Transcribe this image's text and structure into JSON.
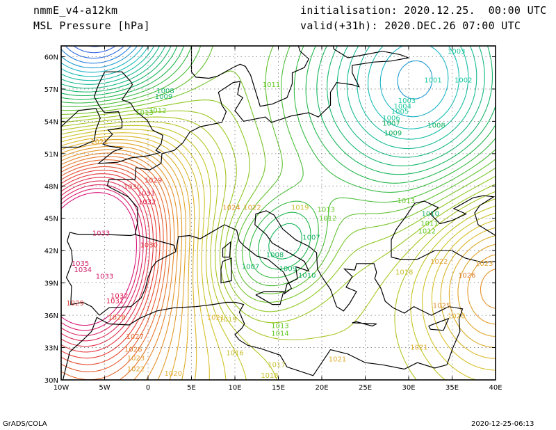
{
  "header": {
    "model": "nmmE_v4-a12km",
    "field": "MSL Pressure [hPa]",
    "init": "initialisation: 2020.12.25.  00:00 UTC",
    "valid": "valid(+31h): 2020.DEC.26 07:00 UTC"
  },
  "footer": {
    "left": "GrADS/COLA",
    "right": "2020-12-25-06:13"
  },
  "axes": {
    "lon_labels": [
      "10W",
      "5W",
      "0",
      "5E",
      "10E",
      "15E",
      "20E",
      "25E",
      "30E",
      "35E",
      "40E"
    ],
    "lat_labels": [
      "60N",
      "57N",
      "54N",
      "51N",
      "48N",
      "45N",
      "42N",
      "39N",
      "36N",
      "33N",
      "30N"
    ]
  },
  "isobars": [
    {
      "label": "1001",
      "color": "#1ec8a0",
      "lon": 32.8,
      "lat": 57.6
    },
    {
      "label": "1002",
      "color": "#1ec8a0",
      "lon": 36.3,
      "lat": 57.6
    },
    {
      "label": "1003",
      "color": "#1ec8a0",
      "lon": 29.8,
      "lat": 55.7
    },
    {
      "label": "1004",
      "color": "#1ec8a0",
      "lon": 29.3,
      "lat": 55.2
    },
    {
      "label": "1005",
      "color": "#1ec8a0",
      "lon": 29.0,
      "lat": 54.7
    },
    {
      "label": "1006",
      "color": "#1ec8a0",
      "lon": 28.0,
      "lat": 54.1
    },
    {
      "label": "1003",
      "color": "#1ec8a0",
      "lon": 35.5,
      "lat": 60.3
    },
    {
      "label": "1007",
      "color": "#10b060",
      "lon": 28.0,
      "lat": 53.6
    },
    {
      "label": "1008",
      "color": "#10b060",
      "lon": 33.2,
      "lat": 53.4
    },
    {
      "label": "1009",
      "color": "#10b060",
      "lon": 28.2,
      "lat": 52.7
    },
    {
      "label": "1008",
      "color": "#10b060",
      "lon": 2.0,
      "lat": 56.6
    },
    {
      "label": "1009",
      "color": "#10b060",
      "lon": 1.8,
      "lat": 56.1
    },
    {
      "label": "1012",
      "color": "#60c820",
      "lon": 1.1,
      "lat": 54.8
    },
    {
      "label": "1011",
      "color": "#60c820",
      "lon": 14.2,
      "lat": 57.2
    },
    {
      "label": "1013",
      "color": "#60c820",
      "lon": -0.4,
      "lat": 54.6
    },
    {
      "label": "1022",
      "color": "#e0a030",
      "lon": -5.6,
      "lat": 51.9
    },
    {
      "label": "1029",
      "color": "#e04040",
      "lon": 0.6,
      "lat": 48.3
    },
    {
      "label": "1031",
      "color": "#e02050",
      "lon": -0.2,
      "lat": 47.1
    },
    {
      "label": "1032",
      "color": "#e02050",
      "lon": -0.1,
      "lat": 46.3
    },
    {
      "label": "1030",
      "color": "#e04040",
      "lon": -1.8,
      "lat": 47.7
    },
    {
      "label": "1033",
      "color": "#d0206a",
      "lon": -5.4,
      "lat": 43.4
    },
    {
      "label": "1035",
      "color": "#d0206a",
      "lon": -7.8,
      "lat": 40.6
    },
    {
      "label": "1034",
      "color": "#d0206a",
      "lon": -7.5,
      "lat": 40.0
    },
    {
      "label": "1033",
      "color": "#d0206a",
      "lon": -5.0,
      "lat": 39.4
    },
    {
      "label": "1032",
      "color": "#e02050",
      "lon": -3.3,
      "lat": 37.6
    },
    {
      "label": "1031",
      "color": "#e02050",
      "lon": -3.8,
      "lat": 37.1
    },
    {
      "label": "1030",
      "color": "#e04040",
      "lon": 0.1,
      "lat": 42.3
    },
    {
      "label": "1029",
      "color": "#e04040",
      "lon": -8.4,
      "lat": 36.9
    },
    {
      "label": "1028",
      "color": "#e06030",
      "lon": -3.6,
      "lat": 35.6
    },
    {
      "label": "1027",
      "color": "#e07030",
      "lon": -1.5,
      "lat": 33.8
    },
    {
      "label": "1026",
      "color": "#e08030",
      "lon": -1.7,
      "lat": 32.6
    },
    {
      "label": "1023",
      "color": "#e0a030",
      "lon": -1.4,
      "lat": 31.8
    },
    {
      "label": "1022",
      "color": "#e0a030",
      "lon": -1.4,
      "lat": 30.8
    },
    {
      "label": "1020",
      "color": "#e0b030",
      "lon": 2.9,
      "lat": 30.4
    },
    {
      "label": "1024",
      "color": "#e09030",
      "lon": 9.6,
      "lat": 45.8
    },
    {
      "label": "1022",
      "color": "#e0a030",
      "lon": 12.0,
      "lat": 45.8
    },
    {
      "label": "1019",
      "color": "#c8c030",
      "lon": 17.5,
      "lat": 45.8
    },
    {
      "label": "1013",
      "color": "#60c820",
      "lon": 20.5,
      "lat": 45.6
    },
    {
      "label": "1012",
      "color": "#60c820",
      "lon": 20.7,
      "lat": 44.8
    },
    {
      "label": "1013",
      "color": "#60c820",
      "lon": 29.7,
      "lat": 46.4
    },
    {
      "label": "1010",
      "color": "#10b060",
      "lon": 32.5,
      "lat": 45.2
    },
    {
      "label": "1011",
      "color": "#60c820",
      "lon": 32.4,
      "lat": 44.3
    },
    {
      "label": "1012",
      "color": "#60c820",
      "lon": 32.1,
      "lat": 43.6
    },
    {
      "label": "1007",
      "color": "#10b060",
      "lon": 18.8,
      "lat": 43.0
    },
    {
      "label": "1008",
      "color": "#10b060",
      "lon": 14.6,
      "lat": 41.4
    },
    {
      "label": "1007",
      "color": "#10b060",
      "lon": 11.8,
      "lat": 40.3
    },
    {
      "label": "1010",
      "color": "#10b060",
      "lon": 18.3,
      "lat": 39.5
    },
    {
      "label": "1009",
      "color": "#10b060",
      "lon": 16.1,
      "lat": 40.1
    },
    {
      "label": "1013",
      "color": "#60c820",
      "lon": 15.2,
      "lat": 34.8
    },
    {
      "label": "1014",
      "color": "#60c820",
      "lon": 15.2,
      "lat": 34.1
    },
    {
      "label": "1021",
      "color": "#e0b030",
      "lon": 7.8,
      "lat": 35.6
    },
    {
      "label": "1019",
      "color": "#c8c030",
      "lon": 9.2,
      "lat": 35.4
    },
    {
      "label": "1016",
      "color": "#c8c030",
      "lon": 10.0,
      "lat": 32.3
    },
    {
      "label": "1017",
      "color": "#c8c030",
      "lon": 14.8,
      "lat": 31.2
    },
    {
      "label": "1018",
      "color": "#c8c030",
      "lon": 14.0,
      "lat": 30.2
    },
    {
      "label": "1021",
      "color": "#e0b030",
      "lon": 21.8,
      "lat": 31.7
    },
    {
      "label": "1021",
      "color": "#e0b030",
      "lon": 31.2,
      "lat": 32.8
    },
    {
      "label": "1022",
      "color": "#e0a030",
      "lon": 33.5,
      "lat": 40.8
    },
    {
      "label": "1023",
      "color": "#e0a030",
      "lon": 38.7,
      "lat": 40.6
    },
    {
      "label": "1026",
      "color": "#e08030",
      "lon": 36.7,
      "lat": 39.5
    },
    {
      "label": "1025",
      "color": "#e09030",
      "lon": 33.8,
      "lat": 36.7
    },
    {
      "label": "1018",
      "color": "#c8c030",
      "lon": 29.5,
      "lat": 39.8
    },
    {
      "label": "1020",
      "color": "#e0b030",
      "lon": 35.5,
      "lat": 35.7
    }
  ]
}
